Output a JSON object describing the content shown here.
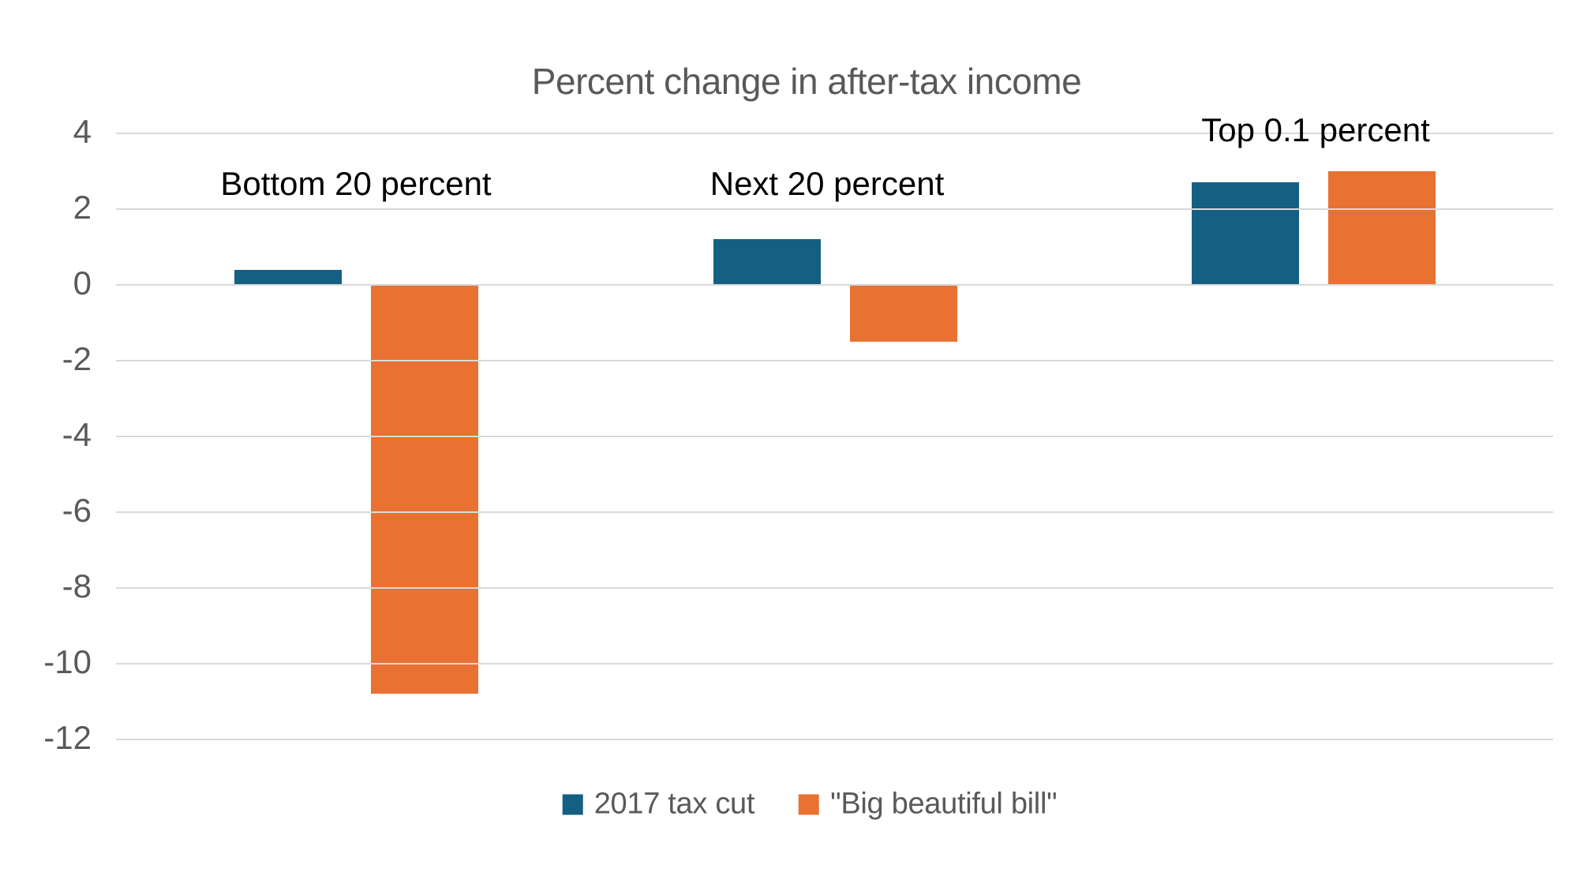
{
  "page": {
    "background": "#FFFFFF"
  },
  "chart_data": {
    "type": "bar",
    "title": "Percent change in after-tax income",
    "title_color": "#595959",
    "categories": [
      "Bottom 20 percent",
      "Next 20 percent",
      "Top 0.1 percent"
    ],
    "series": [
      {
        "name": "2017 tax cut",
        "color": "#156082",
        "values": [
          0.4,
          1.2,
          2.7
        ]
      },
      {
        "name": "\"Big beautiful bill\"",
        "color": "#E97132",
        "values": [
          -10.8,
          -1.5,
          3.0
        ]
      }
    ],
    "y_axis": {
      "min": -12,
      "max": 4,
      "tick_step": 2,
      "ticks": [
        4,
        2,
        0,
        -2,
        -4,
        -6,
        -8,
        -10,
        -12
      ],
      "tick_color": "#595959"
    },
    "gridlines": {
      "show": true,
      "color": "#D9D9D9"
    },
    "legend": {
      "position": "bottom",
      "text_color": "#595959"
    },
    "xlabel": "",
    "ylabel": ""
  }
}
